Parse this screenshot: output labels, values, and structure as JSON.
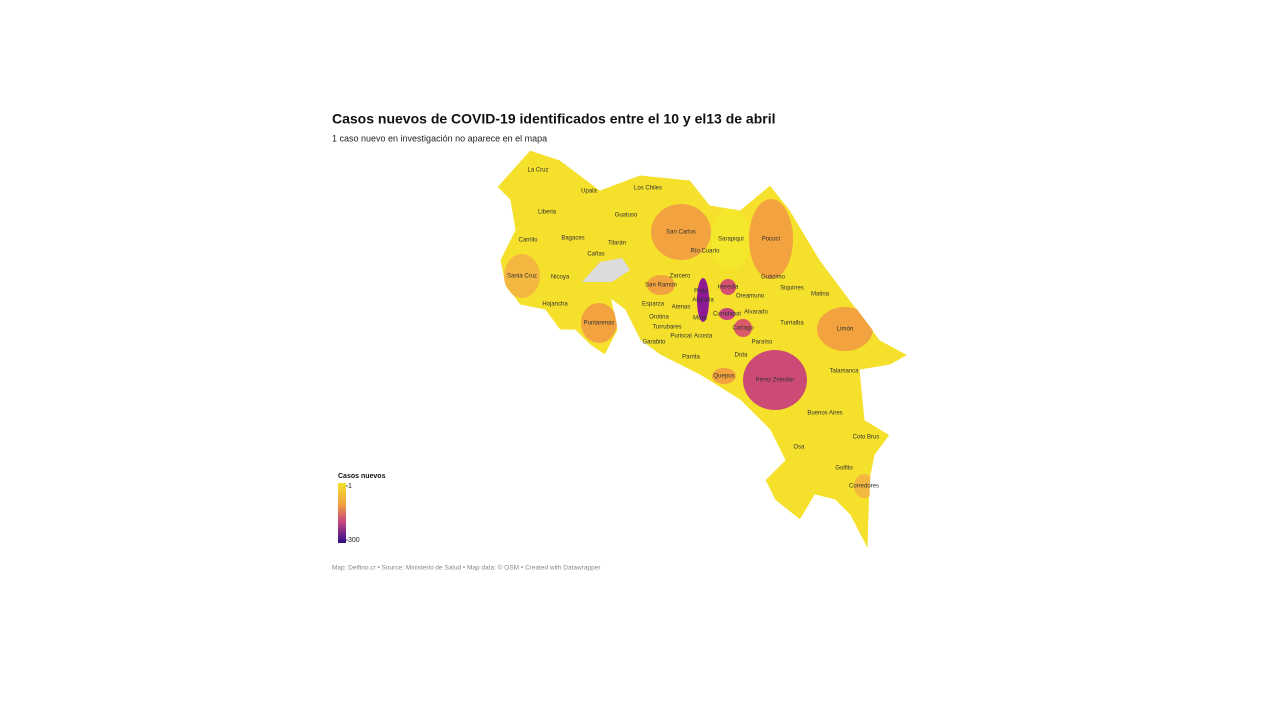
{
  "title": "Casos nuevos de COVID-19 identificados entre el 10 y el13 de abril",
  "subtitle": "1 caso nuevo en investigación no aparece en el mapa",
  "legend": {
    "title": "Casos nuevos",
    "ticks": [
      1,
      300
    ]
  },
  "footer": "Map: Delfino.cr • Source: Ministerio de Salud • Map data: © OSM • Created with Datawrapper",
  "regions": [
    {
      "name": "La Cruz",
      "color": "#f5e02c"
    },
    {
      "name": "Upala",
      "color": "#f5e02c"
    },
    {
      "name": "Los Chiles",
      "color": "#f5e02c"
    },
    {
      "name": "Liberia",
      "color": "#f5e02c"
    },
    {
      "name": "Guatuso",
      "color": "#f5e02c"
    },
    {
      "name": "Carrillo",
      "color": "#f5e02c"
    },
    {
      "name": "Bagaces",
      "color": "#f5e02c"
    },
    {
      "name": "Tilarán",
      "color": "#f5e02c"
    },
    {
      "name": "Cañas",
      "color": "#f5e02c"
    },
    {
      "name": "San Carlos",
      "color": "#f2a23e"
    },
    {
      "name": "Sarapiquí",
      "color": "#f5e82c"
    },
    {
      "name": "Pococí",
      "color": "#f2a23e"
    },
    {
      "name": "Río Cuarto",
      "color": "#f5e02c"
    },
    {
      "name": "Santa Cruz",
      "color": "#f4b841"
    },
    {
      "name": "Nicoya",
      "color": "#f5e02c"
    },
    {
      "name": "Zarcero",
      "color": "#f5e02c"
    },
    {
      "name": "San Ramón",
      "color": "#f2a23e"
    },
    {
      "name": "Guácimo",
      "color": "#f5e02c"
    },
    {
      "name": "Heredia",
      "color": "#d4506e"
    },
    {
      "name": "Siquirres",
      "color": "#f5e02c"
    },
    {
      "name": "Poás",
      "color": "#f5e02c"
    },
    {
      "name": "Oreamuno",
      "color": "#f5e02c"
    },
    {
      "name": "Matina",
      "color": "#f5e02c"
    },
    {
      "name": "Alajuela",
      "color": "#8e1a94"
    },
    {
      "name": "Hojancha",
      "color": "#f5e02c"
    },
    {
      "name": "Esparza",
      "color": "#f5e02c"
    },
    {
      "name": "Atenas",
      "color": "#f5e02c"
    },
    {
      "name": "Alvarado",
      "color": "#f5e02c"
    },
    {
      "name": "Curridabat",
      "color": "#c64580"
    },
    {
      "name": "Orotina",
      "color": "#f5e02c"
    },
    {
      "name": "Mora",
      "color": "#f5e02c"
    },
    {
      "name": "Turrialba",
      "color": "#f5e02c"
    },
    {
      "name": "Puntarenas",
      "color": "#f2a23e"
    },
    {
      "name": "Turrubares",
      "color": "#f5e02c"
    },
    {
      "name": "Cartago",
      "color": "#da5a68"
    },
    {
      "name": "Limón",
      "color": "#f2a23e"
    },
    {
      "name": "Puriscal",
      "color": "#f5e02c"
    },
    {
      "name": "Acosta",
      "color": "#f5e02c"
    },
    {
      "name": "Paraíso",
      "color": "#f5c83a"
    },
    {
      "name": "Garabito",
      "color": "#f5e02c"
    },
    {
      "name": "Parrita",
      "color": "#f5e02c"
    },
    {
      "name": "Dota",
      "color": "#f5e02c"
    },
    {
      "name": "Talamanca",
      "color": "#f5e02c"
    },
    {
      "name": "Quepos",
      "color": "#f2a23e"
    },
    {
      "name": "Pérez Zeledón",
      "color": "#cc4a76"
    },
    {
      "name": "Buenos Aires",
      "color": "#f5e02c"
    },
    {
      "name": "Coto Brus",
      "color": "#f5e02c"
    },
    {
      "name": "Osa",
      "color": "#f5e02c"
    },
    {
      "name": "Golfito",
      "color": "#f5e02c"
    },
    {
      "name": "Corredores",
      "color": "#f4b841"
    }
  ]
}
